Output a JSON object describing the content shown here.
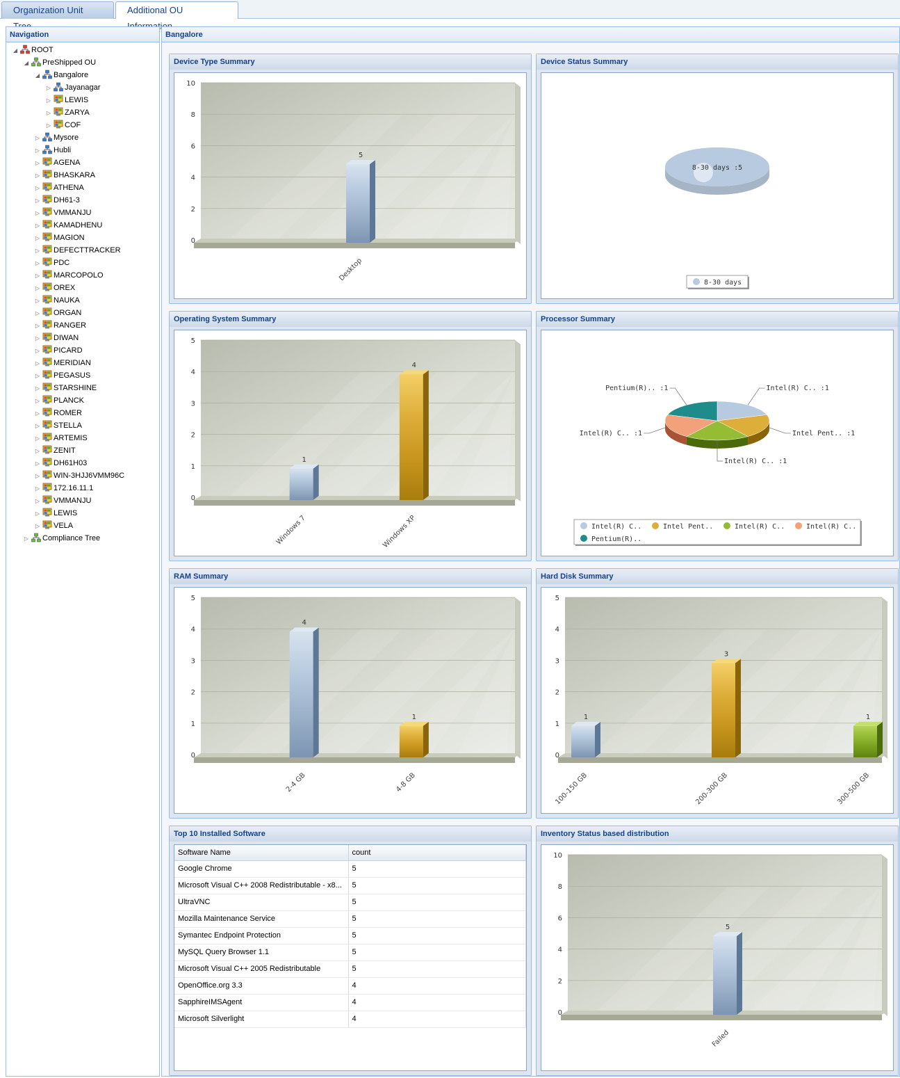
{
  "tabs": [
    {
      "label": "Organization Unit Tree",
      "active": true
    },
    {
      "label": "Additional OU Information",
      "active": false
    }
  ],
  "navigation": {
    "title": "Navigation",
    "tree": [
      {
        "label": "ROOT",
        "level": 0,
        "expanded": true,
        "icon": "root-network-icon"
      },
      {
        "label": "PreShipped OU",
        "level": 1,
        "expanded": true,
        "icon": "ou-network-icon"
      },
      {
        "label": "Bangalore",
        "level": 2,
        "expanded": true,
        "icon": "site-network-icon"
      },
      {
        "label": "Jayanagar",
        "level": 3,
        "icon": "site-network-icon"
      },
      {
        "label": "LEWIS",
        "level": 3,
        "icon": "computer-icon"
      },
      {
        "label": "ZARYA",
        "level": 3,
        "icon": "computer-icon"
      },
      {
        "label": "COF",
        "level": 3,
        "icon": "computer-icon"
      },
      {
        "label": "Mysore",
        "level": 2,
        "icon": "site-network-icon"
      },
      {
        "label": "Hubli",
        "level": 2,
        "icon": "site-network-icon"
      },
      {
        "label": "AGENA",
        "level": 2,
        "icon": "computer-icon"
      },
      {
        "label": "BHASKARA",
        "level": 2,
        "icon": "computer-icon"
      },
      {
        "label": "ATHENA",
        "level": 2,
        "icon": "computer-icon"
      },
      {
        "label": "DH61-3",
        "level": 2,
        "icon": "computer-icon"
      },
      {
        "label": "VMMANJU",
        "level": 2,
        "icon": "computer-icon"
      },
      {
        "label": "KAMADHENU",
        "level": 2,
        "icon": "computer-icon"
      },
      {
        "label": "MAGION",
        "level": 2,
        "icon": "computer-icon"
      },
      {
        "label": "DEFECTTRACKER",
        "level": 2,
        "icon": "computer-icon"
      },
      {
        "label": "PDC",
        "level": 2,
        "icon": "computer-icon"
      },
      {
        "label": "MARCOPOLO",
        "level": 2,
        "icon": "computer-icon"
      },
      {
        "label": "OREX",
        "level": 2,
        "icon": "computer-icon"
      },
      {
        "label": "NAUKA",
        "level": 2,
        "icon": "computer-icon"
      },
      {
        "label": "ORGAN",
        "level": 2,
        "icon": "computer-icon"
      },
      {
        "label": "RANGER",
        "level": 2,
        "icon": "computer-icon"
      },
      {
        "label": "DIWAN",
        "level": 2,
        "icon": "computer-icon"
      },
      {
        "label": "PICARD",
        "level": 2,
        "icon": "computer-icon"
      },
      {
        "label": "MERIDIAN",
        "level": 2,
        "icon": "computer-icon"
      },
      {
        "label": "PEGASUS",
        "level": 2,
        "icon": "computer-icon"
      },
      {
        "label": "STARSHINE",
        "level": 2,
        "icon": "computer-icon"
      },
      {
        "label": "PLANCK",
        "level": 2,
        "icon": "computer-icon"
      },
      {
        "label": "ROMER",
        "level": 2,
        "icon": "computer-icon"
      },
      {
        "label": "STELLA",
        "level": 2,
        "icon": "computer-icon"
      },
      {
        "label": "ARTEMIS",
        "level": 2,
        "icon": "computer-icon"
      },
      {
        "label": "ZENIT",
        "level": 2,
        "icon": "computer-icon"
      },
      {
        "label": "DH61H03",
        "level": 2,
        "icon": "computer-icon"
      },
      {
        "label": "WIN-3HJJ6VMM96C",
        "level": 2,
        "icon": "computer-icon"
      },
      {
        "label": "172.16.11.1",
        "level": 2,
        "icon": "computer-icon"
      },
      {
        "label": "VMMANJU",
        "level": 2,
        "icon": "computer-icon"
      },
      {
        "label": "LEWIS",
        "level": 2,
        "icon": "computer-icon"
      },
      {
        "label": "VELA",
        "level": 2,
        "icon": "computer-icon"
      },
      {
        "label": "Compliance Tree",
        "level": 1,
        "icon": "compliance-network-icon"
      }
    ]
  },
  "main": {
    "title": "Bangalore"
  },
  "colors": {
    "blue": "#8fa8c6",
    "gold": "#d4a52a",
    "green": "#8ab02a",
    "salmon": "#f0a07a",
    "teal": "#1a8a8a"
  },
  "portlets": [
    {
      "title": "Device Type Summary"
    },
    {
      "title": "Device Status Summary"
    },
    {
      "title": "Operating System Summary"
    },
    {
      "title": "Processor Summary"
    },
    {
      "title": "RAM Summary"
    },
    {
      "title": "Hard Disk Summary"
    },
    {
      "title": "Top 10 Installed Software"
    },
    {
      "title": "Inventory Status based distribution"
    }
  ],
  "software_table": {
    "columns": [
      "Software Name",
      "count"
    ],
    "rows": [
      [
        "Google Chrome",
        "5"
      ],
      [
        "Microsoft Visual C++ 2008 Redistributable - x8...",
        "5"
      ],
      [
        "UltraVNC",
        "5"
      ],
      [
        "Mozilla Maintenance Service",
        "5"
      ],
      [
        "Symantec Endpoint Protection",
        "5"
      ],
      [
        "MySQL Query Browser 1.1",
        "5"
      ],
      [
        "Microsoft Visual C++ 2005 Redistributable",
        "5"
      ],
      [
        "OpenOffice.org 3.3",
        "4"
      ],
      [
        "SapphireIMSAgent",
        "4"
      ],
      [
        "Microsoft Silverlight",
        "4"
      ]
    ]
  },
  "chart_data": [
    {
      "id": "device-type",
      "type": "bar",
      "categories": [
        "Desktop"
      ],
      "values": [
        5
      ],
      "colors": [
        "blue"
      ],
      "ylim": [
        0,
        10
      ],
      "yticks": [
        0,
        2,
        4,
        6,
        8,
        10
      ]
    },
    {
      "id": "device-status",
      "type": "pie",
      "labels": [
        "8-30 days"
      ],
      "values": [
        5
      ],
      "slice_labels": [
        "8-30 days :5"
      ],
      "legend": [
        "8-30 days"
      ],
      "colors": [
        "blue"
      ],
      "legend_placement": "bottom"
    },
    {
      "id": "os",
      "type": "bar",
      "categories": [
        "Windows 7",
        "Windows XP"
      ],
      "values": [
        1,
        4
      ],
      "colors": [
        "blue",
        "gold"
      ],
      "ylim": [
        0,
        5
      ],
      "yticks": [
        0,
        1,
        2,
        3,
        4,
        5
      ]
    },
    {
      "id": "processor",
      "type": "pie",
      "labels": [
        "Intel(R) C..",
        "Intel Pent..",
        "Intel(R) C..",
        "Intel(R) C..",
        "Pentium(R).."
      ],
      "values": [
        1,
        1,
        1,
        1,
        1
      ],
      "slice_labels": [
        "Intel(R) C.. :1",
        "Intel Pent.. :1",
        "Intel(R) C.. :1",
        "Intel(R) C.. :1",
        "Pentium(R).. :1"
      ],
      "legend": [
        "Intel(R) C..",
        "Intel Pent..",
        "Intel(R) C..",
        "Intel(R) C..",
        "Pentium(R).."
      ],
      "colors": [
        "blue",
        "gold",
        "green",
        "salmon",
        "teal"
      ],
      "legend_placement": "bottom"
    },
    {
      "id": "ram",
      "type": "bar",
      "categories": [
        "2-4 GB",
        "4-8 GB"
      ],
      "values": [
        4,
        1
      ],
      "colors": [
        "blue",
        "gold"
      ],
      "ylim": [
        0,
        5
      ],
      "yticks": [
        0,
        1,
        2,
        3,
        4,
        5
      ]
    },
    {
      "id": "hdd",
      "type": "bar",
      "categories": [
        "100-150 GB",
        "200-300 GB",
        "300-500 GB"
      ],
      "values": [
        1,
        3,
        1
      ],
      "colors": [
        "blue",
        "gold",
        "green"
      ],
      "ylim": [
        0,
        5
      ],
      "yticks": [
        0,
        1,
        2,
        3,
        4,
        5
      ]
    },
    {
      "id": "inventory",
      "type": "bar",
      "categories": [
        "Failed"
      ],
      "values": [
        5
      ],
      "colors": [
        "blue"
      ],
      "ylim": [
        0,
        10
      ],
      "yticks": [
        0,
        2,
        4,
        6,
        8,
        10
      ]
    }
  ]
}
